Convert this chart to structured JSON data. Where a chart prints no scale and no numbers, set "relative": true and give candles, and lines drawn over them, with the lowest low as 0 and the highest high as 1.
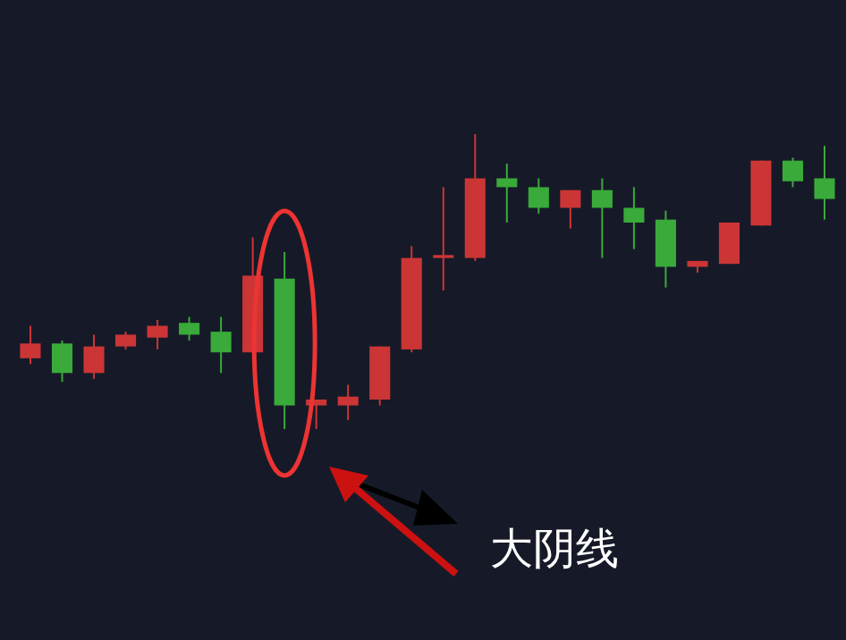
{
  "chart_data": {
    "type": "candlestick",
    "relative": true,
    "categories": [
      null,
      null,
      null,
      null,
      null,
      null,
      null,
      null,
      null,
      null,
      null,
      null,
      null,
      null,
      null,
      null,
      null,
      null,
      null,
      null,
      null,
      null,
      null,
      null,
      null,
      null
    ],
    "ohlc": [
      [
        0.24,
        0.35,
        0.22,
        0.29
      ],
      [
        0.29,
        0.3,
        0.16,
        0.19
      ],
      [
        0.19,
        0.32,
        0.17,
        0.28
      ],
      [
        0.28,
        0.33,
        0.27,
        0.32
      ],
      [
        0.31,
        0.37,
        0.27,
        0.35
      ],
      [
        0.36,
        0.38,
        0.3,
        0.32
      ],
      [
        0.33,
        0.38,
        0.19,
        0.26
      ],
      [
        0.26,
        0.65,
        0.26,
        0.52
      ],
      [
        0.51,
        0.6,
        0,
        0.08
      ],
      [
        0.08,
        0.1,
        0,
        0.1
      ],
      [
        0.08,
        0.15,
        0.03,
        0.11
      ],
      [
        0.1,
        0.28,
        0.08,
        0.28
      ],
      [
        0.27,
        0.62,
        0.26,
        0.58
      ],
      [
        0.58,
        0.82,
        0.47,
        0.59
      ],
      [
        0.58,
        1,
        0.57,
        0.85
      ],
      [
        0.85,
        0.9,
        0.7,
        0.82
      ],
      [
        0.82,
        0.85,
        0.73,
        0.75
      ],
      [
        0.75,
        0.81,
        0.68,
        0.81
      ],
      [
        0.81,
        0.85,
        0.58,
        0.75
      ],
      [
        0.75,
        0.82,
        0.61,
        0.7
      ],
      [
        0.71,
        0.74,
        0.48,
        0.55
      ],
      [
        0.55,
        0.57,
        0.53,
        0.57
      ],
      [
        0.56,
        0.7,
        0.56,
        0.7
      ],
      [
        0.69,
        0.91,
        0.69,
        0.91
      ],
      [
        0.91,
        0.92,
        0.82,
        0.84
      ],
      [
        0.85,
        0.96,
        0.71,
        0.78
      ]
    ],
    "colors": [
      "#cc3535",
      "#3aaa3a",
      "#cc3535",
      "#cc3535",
      "#cc3535",
      "#3aaa3a",
      "#3aaa3a",
      "#cc3535",
      "#3aaa3a",
      "#cc3535",
      "#cc3535",
      "#cc3535",
      "#cc3535",
      "#cc3535",
      "#cc3535",
      "#3aaa3a",
      "#3aaa3a",
      "#cc3535",
      "#3aaa3a",
      "#3aaa3a",
      "#3aaa3a",
      "#cc3535",
      "#cc3535",
      "#cc3535",
      "#3aaa3a",
      "#3aaa3a"
    ],
    "annotations": [
      "大阴线"
    ]
  }
}
